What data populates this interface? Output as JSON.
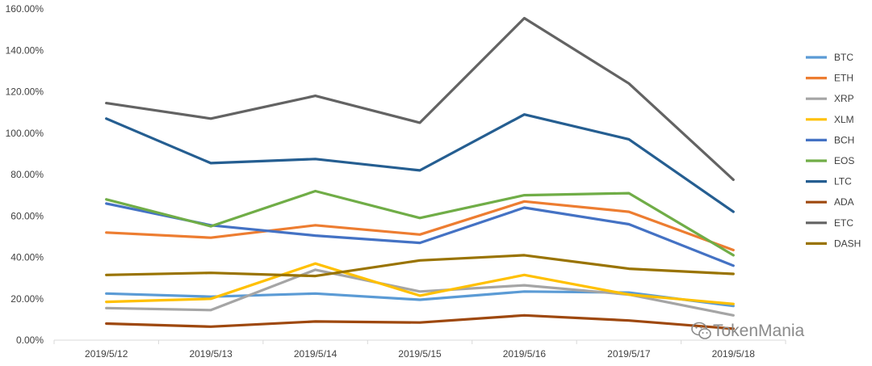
{
  "chart_data": {
    "type": "line",
    "title": "",
    "xlabel": "",
    "ylabel": "",
    "categories": [
      "2019/5/12",
      "2019/5/13",
      "2019/5/14",
      "2019/5/15",
      "2019/5/16",
      "2019/5/17",
      "2019/5/18"
    ],
    "ylim": [
      0,
      160
    ],
    "yticks": [
      0,
      20,
      40,
      60,
      80,
      100,
      120,
      140,
      160
    ],
    "ytick_labels": [
      "0.00%",
      "20.00%",
      "40.00%",
      "60.00%",
      "80.00%",
      "100.00%",
      "120.00%",
      "140.00%",
      "160.00%"
    ],
    "value_format": "percent",
    "grid": false,
    "legend_position": "right",
    "series": [
      {
        "name": "BTC",
        "color": "#5b9bd5",
        "values": [
          22.5,
          21,
          22.5,
          19.5,
          23.5,
          23,
          16.5
        ]
      },
      {
        "name": "ETH",
        "color": "#ed7d31",
        "values": [
          52,
          49.5,
          55.5,
          51,
          67,
          62,
          43.5
        ]
      },
      {
        "name": "XRP",
        "color": "#a5a5a5",
        "values": [
          15.5,
          14.5,
          34,
          23.5,
          26.5,
          22,
          12
        ]
      },
      {
        "name": "XLM",
        "color": "#ffc000",
        "values": [
          18.5,
          20,
          37,
          21.5,
          31.5,
          22,
          17.5
        ]
      },
      {
        "name": "BCH",
        "color": "#4472c4",
        "values": [
          66,
          55.5,
          50.5,
          47,
          64,
          56,
          36
        ]
      },
      {
        "name": "EOS",
        "color": "#70ad47",
        "values": [
          68,
          55,
          72,
          59,
          70,
          71,
          41
        ]
      },
      {
        "name": "LTC",
        "color": "#255e91",
        "values": [
          107,
          85.5,
          87.5,
          82,
          109,
          97,
          62
        ]
      },
      {
        "name": "ADA",
        "color": "#9e480e",
        "values": [
          8,
          6.5,
          9,
          8.5,
          12,
          9.5,
          5.5
        ]
      },
      {
        "name": "ETC",
        "color": "#636363",
        "values": [
          114.5,
          107,
          118,
          105,
          155.5,
          124,
          77.5
        ]
      },
      {
        "name": "DASH",
        "color": "#997300",
        "values": [
          31.5,
          32.5,
          31,
          38.5,
          41,
          34.5,
          32
        ]
      }
    ]
  },
  "watermark": {
    "text": "TokenMania",
    "icon": "wechat-icon"
  }
}
